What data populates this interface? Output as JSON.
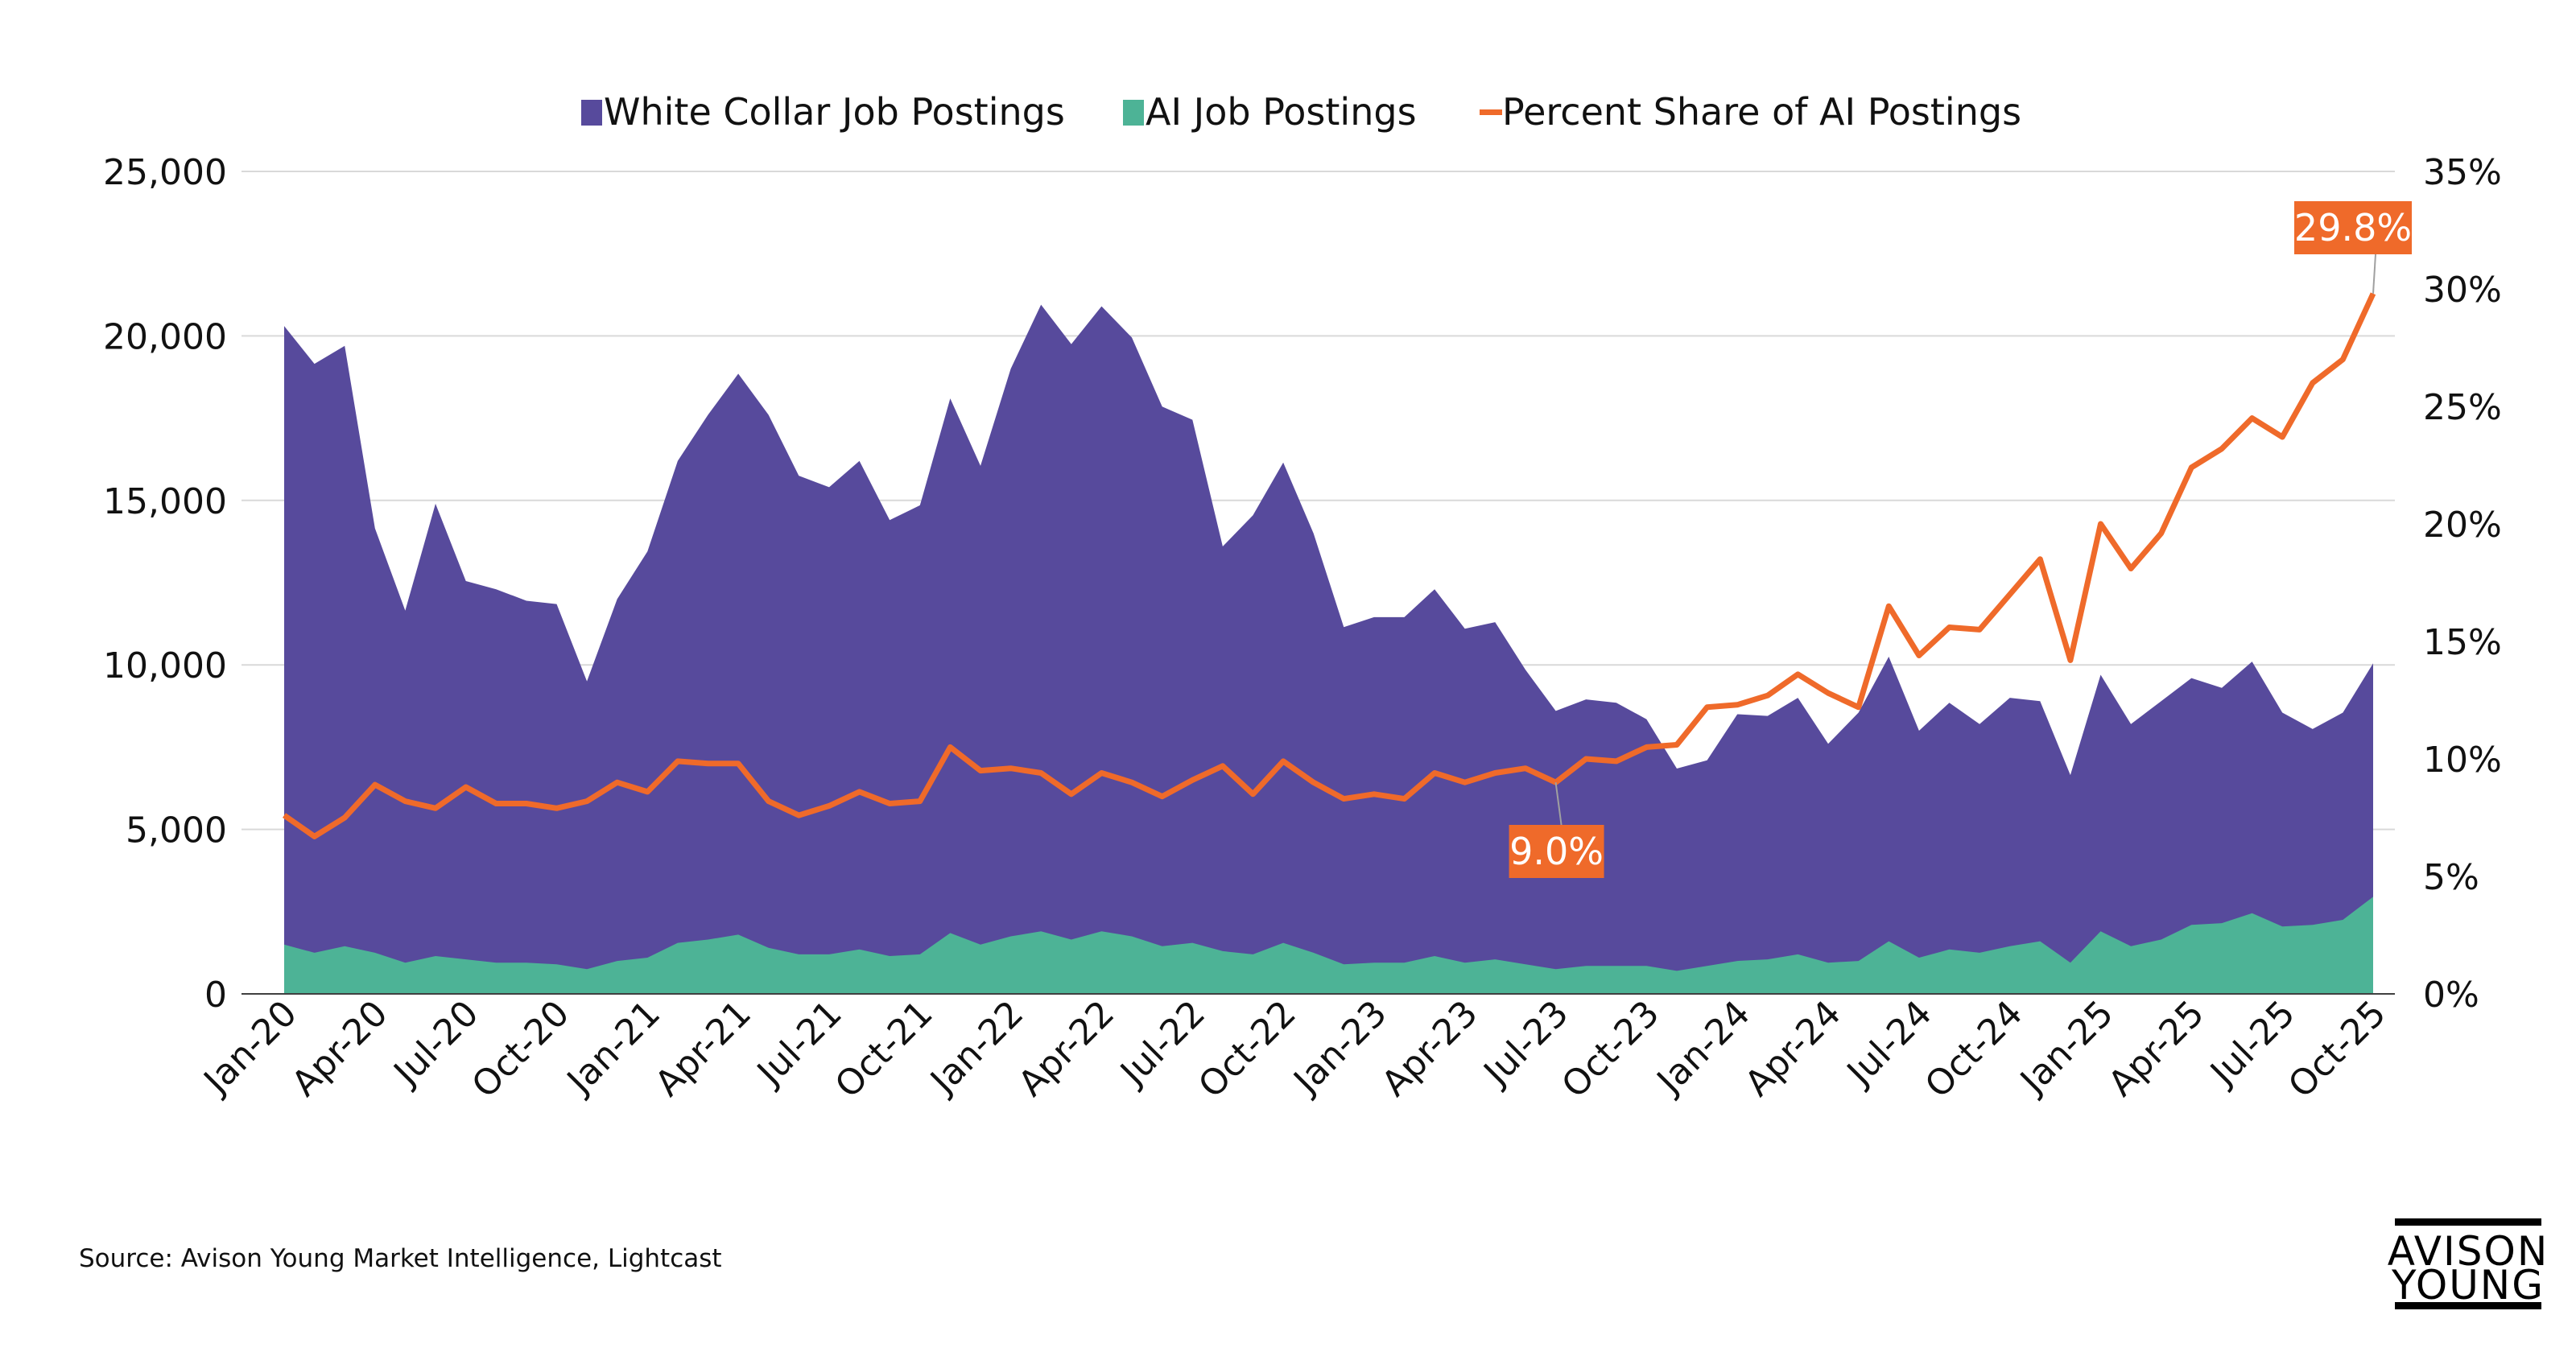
{
  "chart_data": {
    "type": "area",
    "title": "",
    "xlabel": "",
    "ylabel": "",
    "y2label": "",
    "ylim": [
      0,
      25000
    ],
    "y2lim": [
      0,
      35
    ],
    "yticks": [
      "0",
      "5,000",
      "10,000",
      "15,000",
      "20,000",
      "25,000"
    ],
    "y2ticks": [
      "0%",
      "5%",
      "10%",
      "15%",
      "20%",
      "25%",
      "30%",
      "35%"
    ],
    "grid": "horizontal",
    "legend_position": "top",
    "x": [
      "Jan-20",
      "Feb-20",
      "Mar-20",
      "Apr-20",
      "May-20",
      "Jun-20",
      "Jul-20",
      "Aug-20",
      "Sep-20",
      "Oct-20",
      "Nov-20",
      "Dec-20",
      "Jan-21",
      "Feb-21",
      "Mar-21",
      "Apr-21",
      "May-21",
      "Jun-21",
      "Jul-21",
      "Aug-21",
      "Sep-21",
      "Oct-21",
      "Nov-21",
      "Dec-21",
      "Jan-22",
      "Feb-22",
      "Mar-22",
      "Apr-22",
      "May-22",
      "Jun-22",
      "Jul-22",
      "Aug-22",
      "Sep-22",
      "Oct-22",
      "Nov-22",
      "Dec-22",
      "Jan-23",
      "Feb-23",
      "Mar-23",
      "Apr-23",
      "May-23",
      "Jun-23",
      "Jul-23",
      "Aug-23",
      "Sep-23",
      "Oct-23",
      "Nov-23",
      "Dec-23",
      "Jan-24",
      "Feb-24",
      "Mar-24",
      "Apr-24",
      "May-24",
      "Jun-24",
      "Jul-24",
      "Aug-24",
      "Sep-24",
      "Oct-24",
      "Nov-24",
      "Dec-24",
      "Jan-25",
      "Feb-25",
      "Mar-25",
      "Apr-25",
      "May-25",
      "Jun-25",
      "Jul-25",
      "Aug-25",
      "Sep-25",
      "Oct-25"
    ],
    "xtick_labels": [
      "Jan-20",
      "Apr-20",
      "Jul-20",
      "Oct-20",
      "Jan-21",
      "Apr-21",
      "Jul-21",
      "Oct-21",
      "Jan-22",
      "Apr-22",
      "Jul-22",
      "Oct-22",
      "Jan-23",
      "Apr-23",
      "Jul-23",
      "Oct-23",
      "Jan-24",
      "Apr-24",
      "Jul-24",
      "Oct-24",
      "Jan-25",
      "Apr-25",
      "Jul-25",
      "Oct-25"
    ],
    "series": [
      {
        "name": "White Collar Job Postings",
        "type": "area",
        "axis": "left",
        "color": "#574a9c",
        "values": [
          20300,
          19150,
          19700,
          14150,
          11650,
          14900,
          12550,
          12300,
          11950,
          11850,
          9500,
          12000,
          13450,
          16200,
          17600,
          18850,
          17600,
          15750,
          15400,
          16200,
          14400,
          14850,
          18100,
          16050,
          19000,
          20950,
          19750,
          20900,
          19950,
          17850,
          17450,
          13600,
          14550,
          16150,
          14000,
          11150,
          11450,
          11450,
          12300,
          11100,
          11300,
          9850,
          8600,
          8950,
          8850,
          8350,
          6850,
          7100,
          8500,
          8450,
          9000,
          7600,
          8550,
          10250,
          8000,
          8850,
          8200,
          9000,
          8900,
          6650,
          9700,
          8200,
          8900,
          9600,
          9300,
          10100,
          8550,
          8050,
          8550,
          10050
        ]
      },
      {
        "name": "AI Job Postings",
        "type": "area",
        "axis": "left",
        "color": "#4db396",
        "values": [
          1500,
          1250,
          1450,
          1250,
          950,
          1150,
          1050,
          950,
          950,
          900,
          750,
          1000,
          1100,
          1550,
          1650,
          1800,
          1400,
          1200,
          1200,
          1350,
          1150,
          1200,
          1850,
          1500,
          1750,
          1900,
          1650,
          1900,
          1750,
          1450,
          1550,
          1300,
          1200,
          1550,
          1250,
          900,
          950,
          950,
          1150,
          950,
          1050,
          900,
          750,
          850,
          850,
          850,
          700,
          850,
          1000,
          1050,
          1200,
          950,
          1000,
          1600,
          1100,
          1350,
          1250,
          1450,
          1600,
          950,
          1900,
          1450,
          1650,
          2100,
          2150,
          2450,
          2050,
          2100,
          2250,
          2950
        ]
      },
      {
        "name": "Percent Share of AI Postings",
        "type": "line",
        "axis": "right",
        "color": "#ef6a2a",
        "values": [
          7.6,
          6.7,
          7.5,
          8.9,
          8.2,
          7.9,
          8.8,
          8.1,
          8.1,
          7.9,
          8.2,
          9.0,
          8.6,
          9.9,
          9.8,
          9.8,
          8.2,
          7.6,
          8.0,
          8.6,
          8.1,
          8.2,
          10.5,
          9.5,
          9.6,
          9.4,
          8.5,
          9.4,
          9.0,
          8.4,
          9.1,
          9.7,
          8.5,
          9.9,
          9.0,
          8.3,
          8.5,
          8.3,
          9.4,
          9.0,
          9.4,
          9.6,
          9.0,
          10.0,
          9.9,
          10.5,
          10.6,
          12.2,
          12.3,
          12.7,
          13.6,
          12.8,
          12.2,
          16.5,
          14.4,
          15.6,
          15.5,
          17.0,
          18.5,
          14.2,
          20.0,
          18.1,
          19.6,
          22.4,
          23.2,
          24.5,
          23.7,
          26.0,
          27.0,
          29.8
        ]
      }
    ],
    "annotations": [
      {
        "x": "Jul-23",
        "text": "9.0%",
        "series": "Percent Share of AI Postings"
      },
      {
        "x": "Oct-25",
        "text": "29.8%",
        "series": "Percent Share of AI Postings"
      }
    ]
  },
  "source": "Source: Avison Young Market Intelligence, Lightcast",
  "logo": {
    "line1": "AVISON",
    "line2": "YOUNG"
  }
}
